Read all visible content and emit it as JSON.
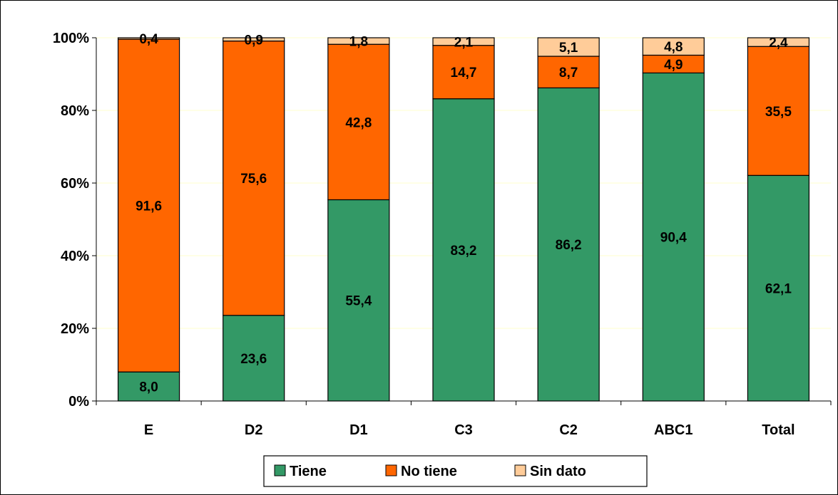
{
  "chart_data": {
    "type": "bar",
    "stacked": true,
    "percent": true,
    "categories": [
      "E",
      "D2",
      "D1",
      "C3",
      "C2",
      "ABC1",
      "Total"
    ],
    "series": [
      {
        "name": "Tiene",
        "values": [
          8.0,
          23.6,
          55.4,
          83.2,
          86.2,
          90.4,
          62.1
        ],
        "labels": [
          "8,0",
          "23,6",
          "55,4",
          "83,2",
          "86,2",
          "90,4",
          "62,1"
        ],
        "color": "#339966"
      },
      {
        "name": "No tiene",
        "values": [
          91.6,
          75.6,
          42.8,
          14.7,
          8.7,
          4.9,
          35.5
        ],
        "labels": [
          "91,6",
          "75,6",
          "42,8",
          "14,7",
          "8,7",
          "4,9",
          "35,5"
        ],
        "color": "#FF6600"
      },
      {
        "name": "Sin dato",
        "values": [
          0.4,
          0.9,
          1.8,
          2.1,
          5.1,
          4.8,
          2.4
        ],
        "labels": [
          "0,4",
          "0,9",
          "1,8",
          "2,1",
          "5,1",
          "4,8",
          "2,4"
        ],
        "color": "#FFCC99"
      }
    ],
    "y_ticks": [
      "0%",
      "20%",
      "40%",
      "60%",
      "80%",
      "100%"
    ],
    "ylim": [
      0,
      100
    ],
    "grid": true,
    "grid_color": "#FFFFCC",
    "legend_position": "bottom"
  }
}
